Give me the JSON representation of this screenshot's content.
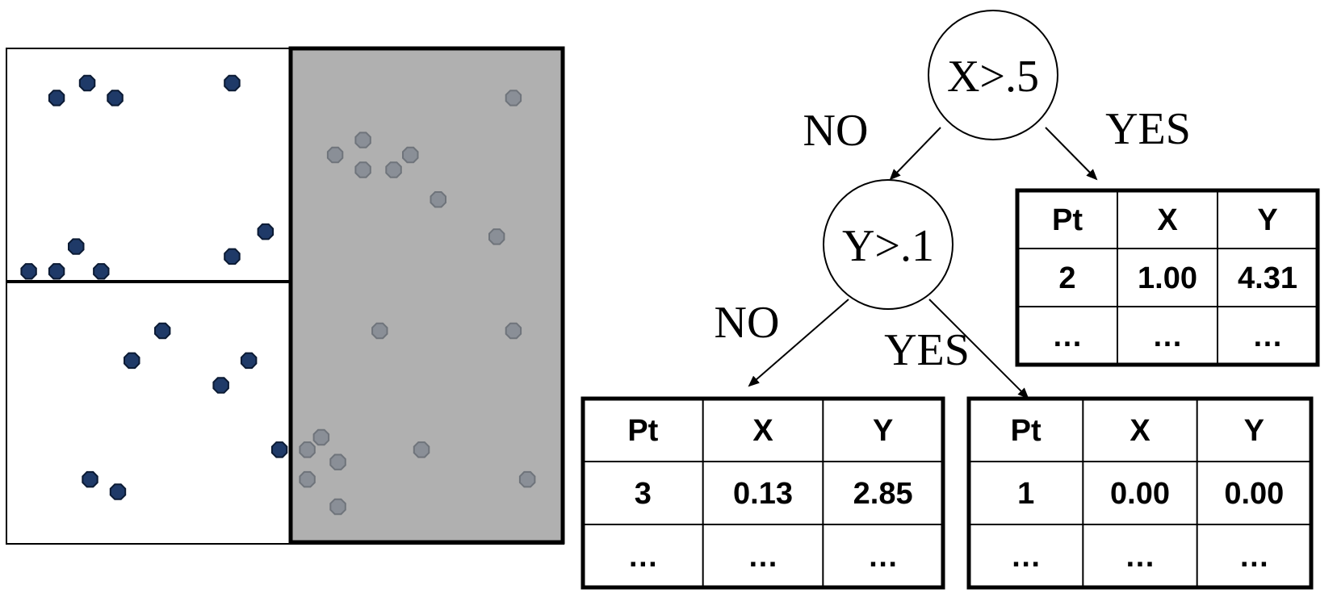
{
  "colors": {
    "point_blue": "#1f3a68",
    "point_gray": "#8a8f97",
    "shaded_region": "#b0b0b0",
    "ink": "#000000"
  },
  "scatter": {
    "blue_points": [
      [
        0.09,
        0.9
      ],
      [
        0.145,
        0.93
      ],
      [
        0.195,
        0.9
      ],
      [
        0.405,
        0.93
      ],
      [
        0.125,
        0.6
      ],
      [
        0.465,
        0.63
      ],
      [
        0.405,
        0.58
      ],
      [
        0.04,
        0.55
      ],
      [
        0.09,
        0.55
      ],
      [
        0.17,
        0.55
      ],
      [
        0.28,
        0.43
      ],
      [
        0.225,
        0.37
      ],
      [
        0.435,
        0.37
      ],
      [
        0.385,
        0.32
      ],
      [
        0.49,
        0.19
      ],
      [
        0.15,
        0.13
      ],
      [
        0.2,
        0.105
      ]
    ],
    "gray_points": [
      [
        0.91,
        0.9
      ],
      [
        0.64,
        0.815
      ],
      [
        0.59,
        0.785
      ],
      [
        0.64,
        0.755
      ],
      [
        0.695,
        0.755
      ],
      [
        0.725,
        0.785
      ],
      [
        0.775,
        0.695
      ],
      [
        0.88,
        0.62
      ],
      [
        0.67,
        0.43
      ],
      [
        0.91,
        0.43
      ],
      [
        0.565,
        0.215
      ],
      [
        0.54,
        0.19
      ],
      [
        0.745,
        0.19
      ],
      [
        0.595,
        0.165
      ],
      [
        0.54,
        0.13
      ],
      [
        0.935,
        0.13
      ],
      [
        0.595,
        0.075
      ]
    ]
  },
  "tree": {
    "root": {
      "label": "X>.5"
    },
    "child": {
      "label": "Y>.1"
    },
    "edges": {
      "root_no": "NO",
      "root_yes": "YES",
      "child_no": "NO",
      "child_yes": "YES"
    }
  },
  "tables": {
    "top_right": {
      "headers": [
        "Pt",
        "X",
        "Y"
      ],
      "rows": [
        [
          "2",
          "1.00",
          "4.31"
        ],
        [
          "…",
          "…",
          "…"
        ]
      ]
    },
    "bottom_left": {
      "headers": [
        "Pt",
        "X",
        "Y"
      ],
      "rows": [
        [
          "3",
          "0.13",
          "2.85"
        ],
        [
          "…",
          "…",
          "…"
        ]
      ]
    },
    "bottom_right": {
      "headers": [
        "Pt",
        "X",
        "Y"
      ],
      "rows": [
        [
          "1",
          "0.00",
          "0.00"
        ],
        [
          "…",
          "…",
          "…"
        ]
      ]
    }
  }
}
